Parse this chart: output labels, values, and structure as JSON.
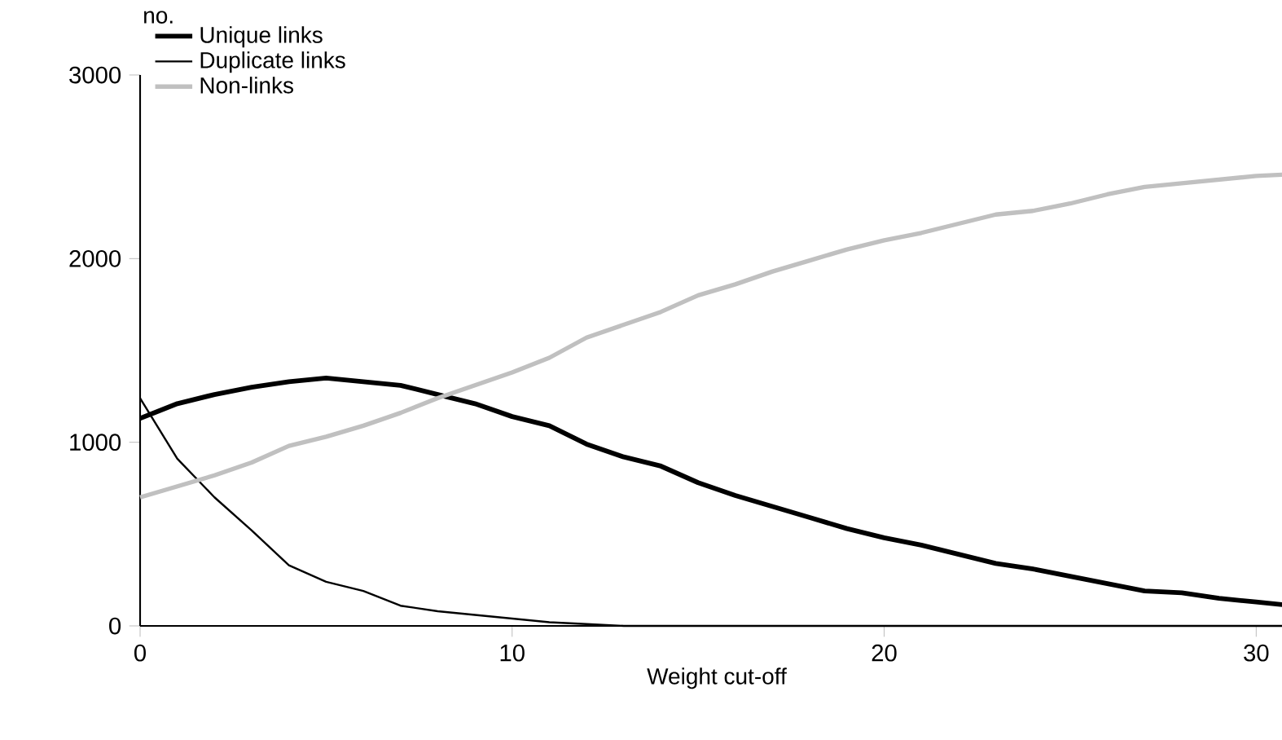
{
  "chart_data": {
    "type": "line",
    "xlabel": "Weight cut-off",
    "ylabel": "no.",
    "x": [
      0,
      1,
      2,
      3,
      4,
      5,
      6,
      7,
      8,
      9,
      10,
      11,
      12,
      13,
      14,
      15,
      16,
      17,
      18,
      19,
      20,
      21,
      22,
      23,
      24,
      25,
      26,
      27,
      28,
      29,
      30,
      31
    ],
    "series": [
      {
        "name": "Unique links",
        "color": "#000000",
        "values": [
          1130,
          1210,
          1260,
          1300,
          1330,
          1350,
          1330,
          1310,
          1260,
          1210,
          1140,
          1090,
          990,
          920,
          870,
          780,
          710,
          650,
          590,
          530,
          480,
          440,
          390,
          340,
          310,
          270,
          230,
          190,
          180,
          150,
          130,
          110
        ]
      },
      {
        "name": "Duplicate links",
        "color": "#000000",
        "values": [
          1240,
          910,
          700,
          520,
          330,
          240,
          190,
          110,
          80,
          60,
          40,
          20,
          10,
          0,
          0,
          0,
          0,
          0,
          0,
          0,
          0,
          0,
          0,
          0,
          0,
          0,
          0,
          0,
          0,
          0,
          0,
          0
        ]
      },
      {
        "name": "Non-links",
        "color": "#c0c0c0",
        "values": [
          700,
          760,
          820,
          890,
          980,
          1030,
          1090,
          1160,
          1240,
          1310,
          1380,
          1460,
          1570,
          1640,
          1710,
          1800,
          1860,
          1930,
          1990,
          2050,
          2100,
          2140,
          2190,
          2240,
          2260,
          2300,
          2350,
          2390,
          2410,
          2430,
          2450,
          2460
        ]
      }
    ],
    "xlim": [
      0,
      31
    ],
    "ylim": [
      0,
      3000
    ],
    "xticks": [
      0,
      10,
      20,
      30
    ],
    "yticks": [
      0,
      1000,
      2000,
      3000
    ],
    "legend": "top left",
    "grid": false,
    "marker": "none",
    "line_style": "solid"
  }
}
